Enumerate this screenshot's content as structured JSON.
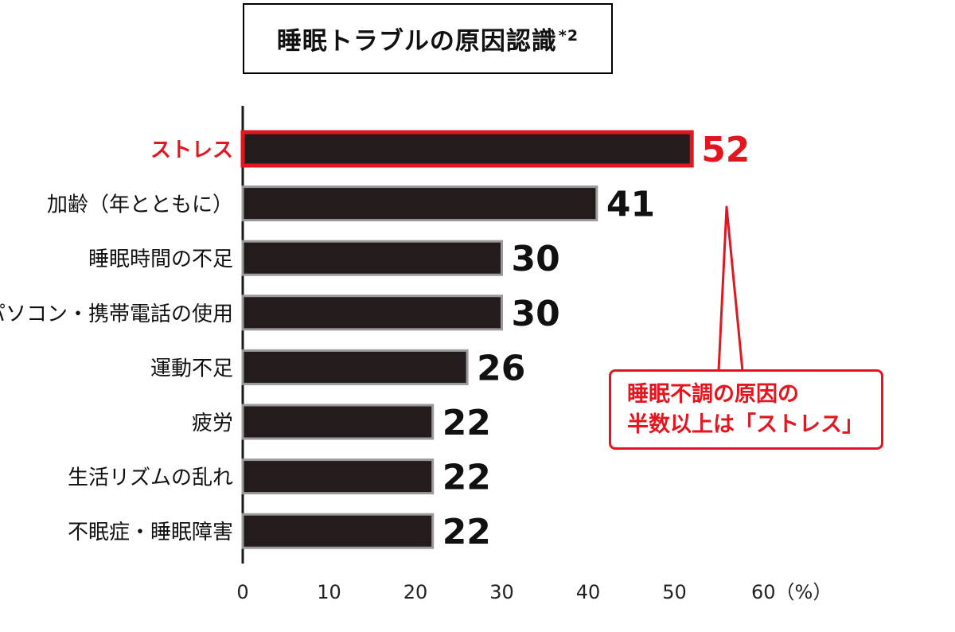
{
  "title": {
    "text": "睡眠トラブルの原因認識",
    "note_mark": "*2"
  },
  "callout": {
    "line1": "睡眠不調の原因の",
    "line2": "半数以上は「ストレス」"
  },
  "colors": {
    "bar": "#231b1c",
    "bar_edge": "#9a9a9a",
    "highlight": "#e3151f",
    "text": "#111111",
    "axis": "#1a1a1a"
  },
  "chart_data": {
    "type": "bar",
    "orientation": "horizontal",
    "title": "睡眠トラブルの原因認識*2",
    "categories": [
      "ストレス",
      "加齢（年とともに）",
      "睡眠時間の不足",
      "パソコン・携帯電話の使用",
      "運動不足",
      "疲労",
      "生活リズムの乱れ",
      "不眠症・睡眠障害"
    ],
    "values": [
      52,
      41,
      30,
      30,
      26,
      22,
      22,
      22
    ],
    "highlight_index": 0,
    "xlim": [
      0,
      60
    ],
    "xticks": [
      "0",
      "10",
      "20",
      "30",
      "40",
      "50",
      "60（%）"
    ],
    "xlabel": "",
    "ylabel": "",
    "grid": false,
    "legend": "none"
  }
}
